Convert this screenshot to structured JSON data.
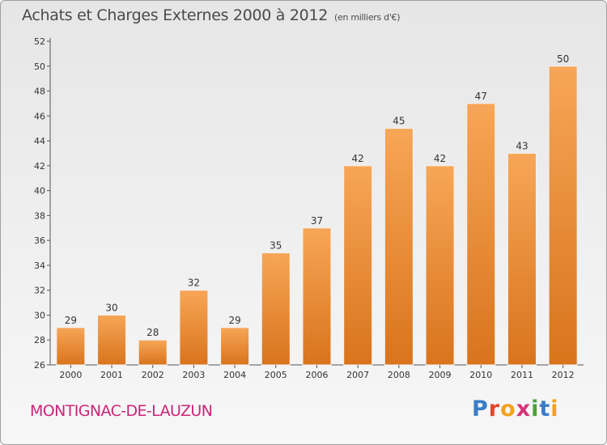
{
  "header": {
    "title": "Achats et Charges Externes 2000 à 2012",
    "unit": "(en milliers d'€)"
  },
  "footer": {
    "commune": "MONTIGNAC-DE-LAUZUN",
    "logo_letters": [
      "P",
      "r",
      "o",
      "x",
      "i",
      "t",
      "i"
    ]
  },
  "colors": {
    "bar_top": "#f7a657",
    "bar_bottom": "#d9741c",
    "title": "#4a4a4a",
    "commune": "#c8267a"
  },
  "chart_data": {
    "type": "bar",
    "categories": [
      "2000",
      "2001",
      "2002",
      "2003",
      "2004",
      "2005",
      "2006",
      "2007",
      "2008",
      "2009",
      "2010",
      "2011",
      "2012"
    ],
    "values": [
      29,
      30,
      28,
      32,
      29,
      35,
      37,
      42,
      45,
      42,
      47,
      43,
      50
    ],
    "ylim": [
      26,
      52
    ],
    "yticks": [
      26,
      28,
      30,
      32,
      34,
      36,
      38,
      40,
      42,
      44,
      46,
      48,
      50,
      52
    ],
    "grid": false,
    "legend": "none"
  }
}
